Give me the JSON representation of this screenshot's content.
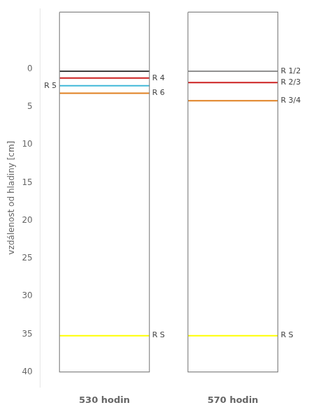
{
  "chart_data": {
    "type": "level",
    "ylabel": "vzdálenost od hladiny [cm]",
    "categories": [
      "530 hodin",
      "570 hodin"
    ],
    "ylim": [
      42,
      -8
    ],
    "yticks": [
      0,
      5,
      10,
      15,
      20,
      25,
      30,
      35,
      40
    ],
    "grid": false,
    "column_range": [
      -7.5,
      40.0
    ],
    "levels": [
      [
        {
          "y": 0.3,
          "color": "#404040"
        },
        {
          "y": 1.2,
          "color": "#cc2020",
          "label": "R 4"
        },
        {
          "y": 2.2,
          "color": "#40b8d8",
          "label": "R 5"
        },
        {
          "y": 3.2,
          "color": "#e08020",
          "label": "R 6"
        },
        {
          "y": 35.2,
          "color": "#ffff00",
          "label": "R S"
        }
      ],
      [
        {
          "y": 0.3,
          "color": "#909090",
          "label": "R 1/2"
        },
        {
          "y": 1.8,
          "color": "#cc2020",
          "label": "R 2/3"
        },
        {
          "y": 4.2,
          "color": "#e08020",
          "label": "R 3/4"
        },
        {
          "y": 35.2,
          "color": "#ffff00",
          "label": "R S"
        }
      ]
    ]
  }
}
